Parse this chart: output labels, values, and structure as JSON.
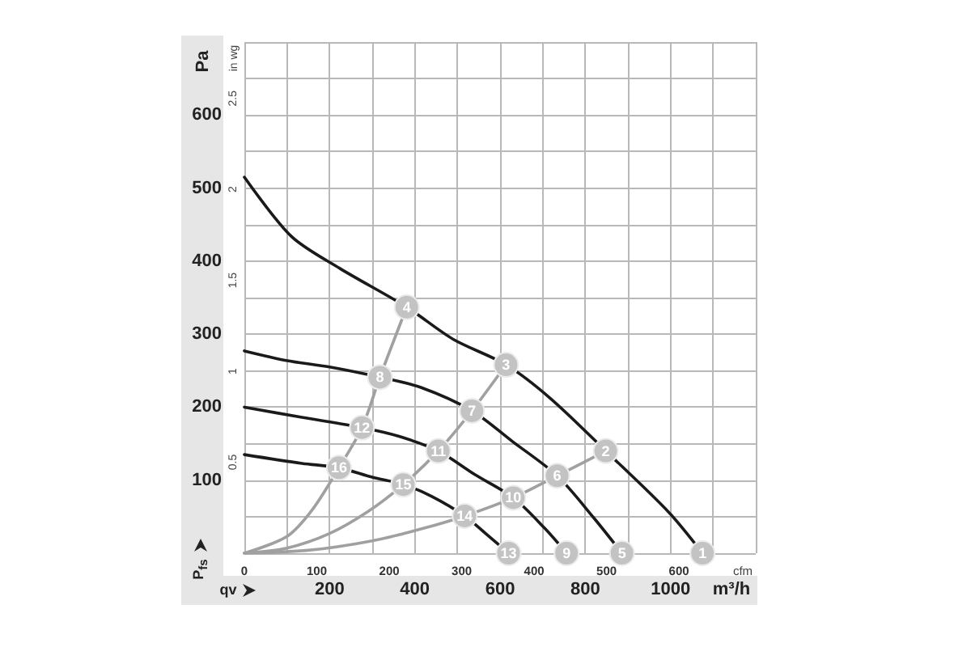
{
  "chart_data": {
    "type": "line",
    "ylabel": "Pa",
    "y2label": "in wg",
    "xlabel": "m³/h",
    "x2label": "cfm",
    "annotations": [
      "P$_{fs}$",
      "qv",
      {
        "text": "1",
        "x": 1075,
        "y": 0
      },
      {
        "text": "2",
        "x": 848,
        "y": 140
      },
      {
        "text": "3",
        "x": 614,
        "y": 258
      },
      {
        "text": "4",
        "x": 381,
        "y": 337
      },
      {
        "text": "5",
        "x": 886,
        "y": 0
      },
      {
        "text": "6",
        "x": 734,
        "y": 106
      },
      {
        "text": "7",
        "x": 534,
        "y": 195
      },
      {
        "text": "8",
        "x": 318,
        "y": 241
      },
      {
        "text": "9",
        "x": 756,
        "y": 0
      },
      {
        "text": "10",
        "x": 631,
        "y": 76
      },
      {
        "text": "11",
        "x": 455,
        "y": 140
      },
      {
        "text": "12",
        "x": 276,
        "y": 172
      },
      {
        "text": "13",
        "x": 620,
        "y": 0
      },
      {
        "text": "14",
        "x": 517,
        "y": 51
      },
      {
        "text": "15",
        "x": 373,
        "y": 94
      },
      {
        "text": "16",
        "x": 222,
        "y": 117
      }
    ],
    "xlim": [
      0,
      1200
    ],
    "xticks": [
      {
        "value": 0,
        "label": null
      },
      {
        "value": 100,
        "label": null
      },
      200,
      {
        "value": 300,
        "label": null
      },
      400,
      {
        "value": 500,
        "label": null
      },
      600,
      {
        "value": 700,
        "label": null
      },
      800,
      {
        "value": 900,
        "label": null
      },
      1000,
      {
        "value": 1100,
        "label": null
      },
      {
        "value": 1200,
        "label": null
      }
    ],
    "x2lim": [
      0,
      706
    ],
    "x2ticks": [
      0,
      100,
      200,
      300,
      400,
      500,
      600
    ],
    "ylim": [
      0,
      700
    ],
    "yticks": [
      {
        "value": 0,
        "label": null
      },
      {
        "value": 50,
        "label": null
      },
      100,
      {
        "value": 150,
        "label": null
      },
      200,
      {
        "value": 250,
        "label": null
      },
      300,
      {
        "value": 350,
        "label": null
      },
      400,
      {
        "value": 450,
        "label": null
      },
      500,
      {
        "value": 550,
        "label": null
      },
      600,
      {
        "value": 650,
        "label": null
      },
      {
        "value": 700,
        "label": null
      }
    ],
    "y2lim": [
      0,
      2.81
    ],
    "y2ticks": [
      0.5,
      1,
      1.5,
      2,
      2.5
    ],
    "grid": true,
    "marker": "none",
    "series": [
      {
        "color": "#1a1a1a",
        "x": [
          0,
          110,
          224,
          381,
          490,
          614,
          718,
          848,
          996,
          1075
        ],
        "values": [
          515,
          434,
          390,
          337,
          293,
          258,
          212,
          140,
          56,
          0
        ]
      },
      {
        "color": "#1a1a1a",
        "x": [
          0,
          98,
          200,
          318,
          414,
          534,
          629,
          734,
          819,
          886
        ],
        "values": [
          277,
          264,
          255,
          241,
          227,
          195,
          153,
          106,
          49,
          0
        ]
      },
      {
        "color": "#1a1a1a",
        "x": [
          0,
          135,
          276,
          363,
          455,
          540,
          631,
          705,
          756
        ],
        "values": [
          200,
          186,
          172,
          160,
          140,
          108,
          76,
          34,
          0
        ]
      },
      {
        "color": "#1a1a1a",
        "x": [
          0,
          135,
          222,
          300,
          373,
          439,
          517,
          566,
          620
        ],
        "values": [
          135,
          123,
          117,
          104,
          94,
          78,
          51,
          27,
          0
        ]
      },
      {
        "color": "#a0a0a0",
        "x": [
          0,
          100,
          160,
          222,
          276,
          318,
          381
        ],
        "values": [
          0,
          23,
          60,
          117,
          172,
          241,
          337
        ]
      },
      {
        "color": "#a0a0a0",
        "x": [
          0,
          100,
          200,
          290,
          373,
          455,
          534,
          614
        ],
        "values": [
          0,
          7,
          27,
          57,
          94,
          140,
          195,
          258
        ]
      },
      {
        "color": "#a0a0a0",
        "x": [
          0,
          150,
          300,
          420,
          517,
          631,
          734,
          848
        ],
        "values": [
          0,
          4,
          17,
          34,
          51,
          76,
          106,
          140
        ]
      }
    ]
  }
}
